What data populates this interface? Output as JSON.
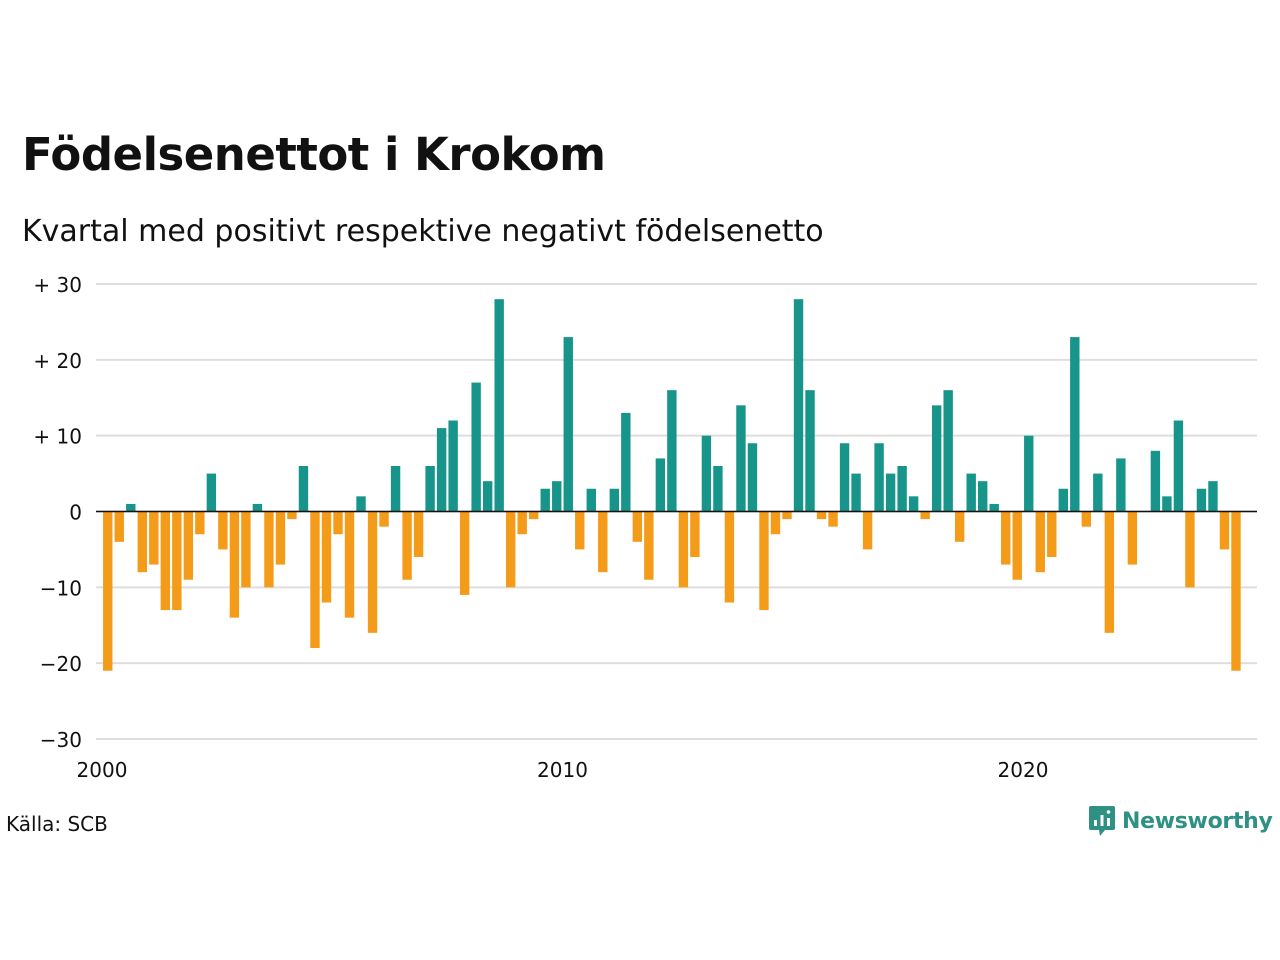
{
  "colors": {
    "positive": "#17958b",
    "negative": "#f59b1a",
    "grid": "#dedede",
    "axis": "#111111",
    "brand": "#2e9184"
  },
  "header": {
    "title": "Födelsenettot i Krokom",
    "subtitle": "Kvartal med positivt respektive negativt födelsenetto"
  },
  "footer": {
    "source": "Källa: SCB",
    "logo_text": "Newsworthy",
    "logo_icon": "chart-speech-bubble-icon"
  },
  "chart_data": {
    "type": "bar",
    "title": "Födelsenettot i Krokom",
    "subtitle": "Kvartal med positivt respektive negativt födelsenetto",
    "xlabel": "",
    "ylabel": "",
    "ylim": [
      -30,
      30
    ],
    "xlim": [
      2000,
      2025.25
    ],
    "yticks": [
      30,
      20,
      10,
      0,
      -10,
      -20,
      -30
    ],
    "ytick_labels": [
      "+ 30",
      "+ 20",
      "+ 10",
      "0",
      "−10",
      "−20",
      "−30"
    ],
    "xticks": [
      2000,
      2010,
      2020
    ],
    "xtick_labels": [
      "2000",
      "2010",
      "2020"
    ],
    "grid": true,
    "legend": "none",
    "start_period": "2000-Q1",
    "values": [
      -21,
      -4,
      1,
      -8,
      -7,
      -13,
      -13,
      -9,
      -3,
      5,
      -5,
      -14,
      -10,
      1,
      -10,
      -7,
      -1,
      6,
      -18,
      -12,
      -3,
      -14,
      2,
      -16,
      -2,
      6,
      -9,
      -6,
      6,
      11,
      12,
      -11,
      17,
      4,
      28,
      -10,
      -3,
      -1,
      3,
      4,
      23,
      -5,
      3,
      -8,
      3,
      13,
      -4,
      -9,
      7,
      16,
      -10,
      -6,
      10,
      6,
      -12,
      14,
      9,
      -13,
      -3,
      -1,
      28,
      16,
      -1,
      -2,
      9,
      5,
      -5,
      9,
      5,
      6,
      2,
      -1,
      14,
      16,
      -4,
      5,
      4,
      1,
      -7,
      -9,
      10,
      -8,
      -6,
      3,
      23,
      -2,
      5,
      -16,
      7,
      -7,
      0,
      8,
      2,
      12,
      -10,
      3,
      4,
      -5,
      -21
    ]
  }
}
